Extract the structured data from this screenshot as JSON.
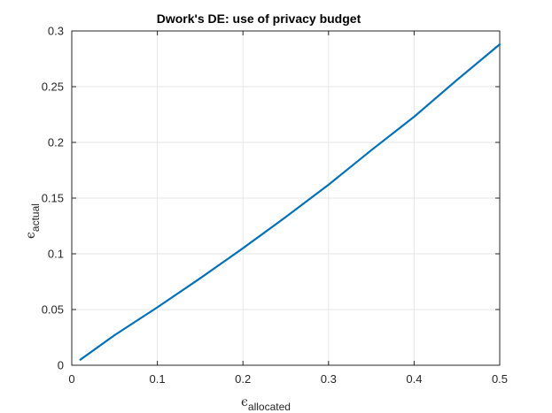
{
  "chart_data": {
    "type": "line",
    "title": "Dwork's DE: use of privacy budget",
    "xlabel": {
      "symbol": "ϵ",
      "subscript": "allocated"
    },
    "ylabel": {
      "symbol": "ϵ",
      "subscript": "actual"
    },
    "xlim": [
      0,
      0.5
    ],
    "ylim": [
      0,
      0.3
    ],
    "xticks": [
      0,
      0.1,
      0.2,
      0.3,
      0.4,
      0.5
    ],
    "xtick_labels": [
      "0",
      "0.1",
      "0.2",
      "0.3",
      "0.4",
      "0.5"
    ],
    "yticks": [
      0,
      0.05,
      0.1,
      0.15,
      0.2,
      0.25,
      0.3
    ],
    "ytick_labels": [
      "0",
      "0.05",
      "0.1",
      "0.15",
      "0.2",
      "0.25",
      "0.3"
    ],
    "grid": true,
    "line_color": "#0072BD",
    "series": [
      {
        "x": [
          0.01,
          0.05,
          0.1,
          0.15,
          0.2,
          0.25,
          0.3,
          0.35,
          0.4,
          0.45,
          0.5
        ],
        "values": [
          0.005,
          0.027,
          0.052,
          0.078,
          0.105,
          0.133,
          0.162,
          0.193,
          0.223,
          0.256,
          0.288
        ]
      }
    ]
  }
}
